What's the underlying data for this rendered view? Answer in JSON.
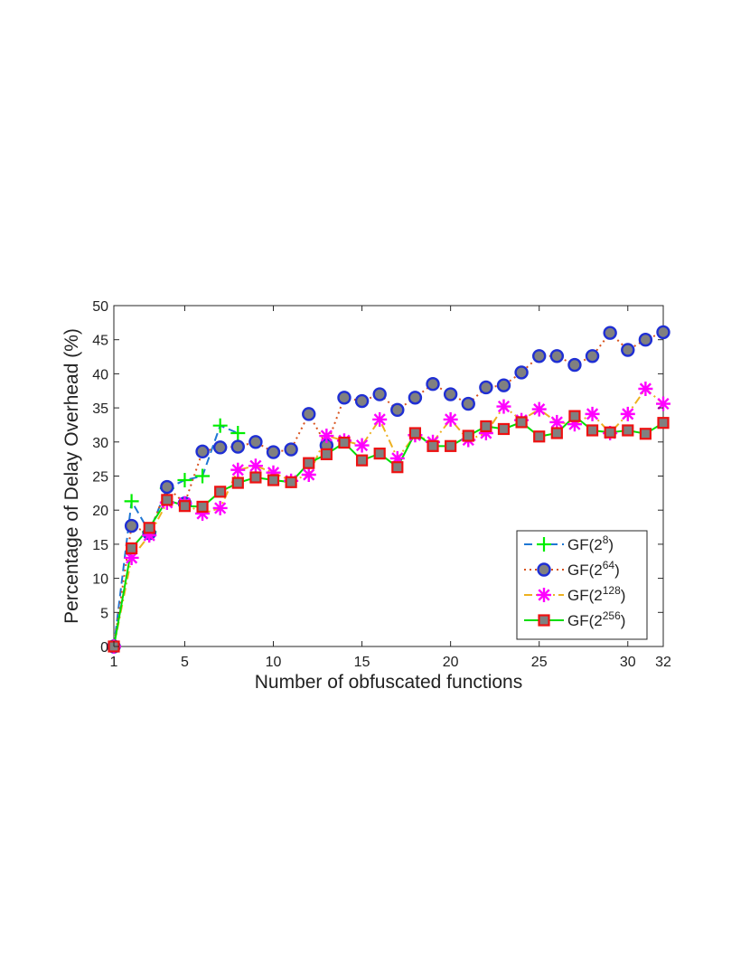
{
  "chart_data": {
    "type": "line",
    "xlabel": "Number of obfuscated functions",
    "ylabel": "Percentage of Delay Overhead (%)",
    "xlim": [
      1,
      32
    ],
    "ylim": [
      0,
      50
    ],
    "xticks": [
      "1",
      "5",
      "10",
      "15",
      "20",
      "25",
      "30",
      "32"
    ],
    "yticks": [
      "0",
      "5",
      "10",
      "15",
      "20",
      "25",
      "30",
      "35",
      "40",
      "45",
      "50"
    ],
    "legend_position": "bottom-right",
    "grid": false,
    "series": [
      {
        "name": "GF(2^8)",
        "base": "GF(2",
        "exp": "8",
        "suffix": ")",
        "color": "#00ee00",
        "line_color": "#1f77d4",
        "line_style": "dashed",
        "marker": "plus",
        "x": [
          1,
          2,
          3,
          4,
          5,
          6,
          7,
          8
        ],
        "y": [
          0,
          21.3,
          16.8,
          23.2,
          24.4,
          25.0,
          32.4,
          31.3
        ]
      },
      {
        "name": "GF(2^64)",
        "base": "GF(2",
        "exp": "64",
        "suffix": ")",
        "color": "#1f2fd4",
        "fill": "#808080",
        "line_color": "#d9531e",
        "line_style": "dotted",
        "marker": "circle",
        "x": [
          1,
          2,
          3,
          4,
          5,
          6,
          7,
          8,
          9,
          10,
          11,
          12,
          13,
          14,
          15,
          16,
          17,
          18,
          19,
          20,
          21,
          22,
          23,
          24,
          25,
          26,
          27,
          28,
          29,
          30,
          31,
          32
        ],
        "y": [
          0,
          17.7,
          16.6,
          23.4,
          21.0,
          28.6,
          29.2,
          29.3,
          30.0,
          28.5,
          28.9,
          34.1,
          29.5,
          36.5,
          36.0,
          37.0,
          34.7,
          36.5,
          38.5,
          37.0,
          35.6,
          38.0,
          38.3,
          40.2,
          42.6,
          42.6,
          41.3,
          42.6,
          46.0,
          43.5,
          45.0,
          46.1
        ]
      },
      {
        "name": "GF(2^128)",
        "base": "GF(2",
        "exp": "128",
        "suffix": ")",
        "color": "#ff00ff",
        "line_color": "#edb120",
        "line_style": "dashdot",
        "marker": "asterisk",
        "x": [
          1,
          2,
          3,
          4,
          5,
          6,
          7,
          8,
          9,
          10,
          11,
          12,
          13,
          14,
          15,
          16,
          17,
          18,
          19,
          20,
          21,
          22,
          23,
          24,
          25,
          26,
          27,
          28,
          29,
          30,
          31,
          32
        ],
        "y": [
          0,
          13.0,
          16.3,
          21.1,
          21.0,
          19.5,
          20.3,
          25.9,
          26.5,
          25.5,
          24.3,
          25.2,
          30.9,
          30.2,
          29.5,
          33.3,
          27.6,
          31.0,
          30.0,
          33.3,
          30.3,
          31.3,
          35.2,
          33.2,
          34.8,
          32.9,
          32.6,
          34.1,
          31.3,
          34.1,
          37.8,
          35.6
        ]
      },
      {
        "name": "GF(2^256)",
        "base": "GF(2",
        "exp": "256",
        "suffix": ")",
        "color": "#ee1111",
        "fill": "#808080",
        "line_color": "#00dd00",
        "line_style": "solid",
        "marker": "square",
        "x": [
          1,
          2,
          3,
          4,
          5,
          6,
          7,
          8,
          9,
          10,
          11,
          12,
          13,
          14,
          15,
          16,
          17,
          18,
          19,
          20,
          21,
          22,
          23,
          24,
          25,
          26,
          27,
          28,
          29,
          30,
          31,
          32
        ],
        "y": [
          0,
          14.4,
          17.4,
          21.5,
          20.6,
          20.5,
          22.7,
          24.0,
          24.8,
          24.4,
          24.1,
          26.9,
          28.2,
          29.9,
          27.3,
          28.3,
          26.3,
          31.3,
          29.4,
          29.4,
          30.9,
          32.3,
          31.9,
          32.9,
          30.8,
          31.3,
          33.8,
          31.7,
          31.4,
          31.7,
          31.2,
          32.8
        ]
      }
    ]
  }
}
